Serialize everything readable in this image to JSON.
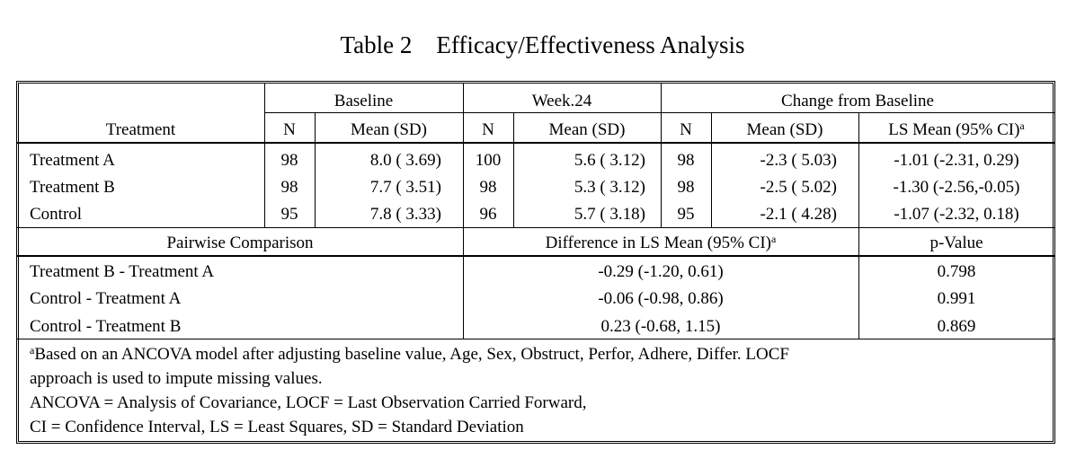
{
  "title": "Table 2    Efficacy/Effectiveness Analysis",
  "groups": {
    "baseline": "Baseline",
    "week24": "Week.24",
    "change": "Change from Baseline"
  },
  "columns": {
    "treatment": "Treatment",
    "n": "N",
    "mean_sd": "Mean (SD)",
    "ls_mean": "LS Mean (95% CI)",
    "ls_mean_sup": "a"
  },
  "rows": [
    {
      "treatment": "Treatment A",
      "base_n": "98",
      "base_mean": "8.0 ( 3.69)",
      "w24_n": "100",
      "w24_mean": "5.6 ( 3.12)",
      "chg_n": "98",
      "chg_mean": "-2.3 ( 5.03)",
      "ls_mean": "-1.01 (-2.31, 0.29)"
    },
    {
      "treatment": "Treatment B",
      "base_n": "98",
      "base_mean": "7.7 ( 3.51)",
      "w24_n": "98",
      "w24_mean": "5.3 ( 3.12)",
      "chg_n": "98",
      "chg_mean": "-2.5 ( 5.02)",
      "ls_mean": "-1.30 (-2.56,-0.05)"
    },
    {
      "treatment": "Control",
      "base_n": "95",
      "base_mean": "7.8 ( 3.33)",
      "w24_n": "96",
      "w24_mean": "5.7 ( 3.18)",
      "chg_n": "95",
      "chg_mean": "-2.1 ( 4.28)",
      "ls_mean": "-1.07 (-2.32, 0.18)"
    }
  ],
  "pairwise": {
    "header": "Pairwise Comparison",
    "diff_header": "Difference in LS Mean (95% CI)",
    "diff_sup": "a",
    "p_header": "p-Value",
    "rows": [
      {
        "label": "Treatment B - Treatment A",
        "diff": "-0.29 (-1.20, 0.61)",
        "p": "0.798"
      },
      {
        "label": "Control - Treatment A",
        "diff": "-0.06 (-0.98, 0.86)",
        "p": "0.991"
      },
      {
        "label": "Control - Treatment B",
        "diff": "0.23 (-0.68, 1.15)",
        "p": "0.869"
      }
    ]
  },
  "footnotes": {
    "sup": "a",
    "line1": "Based on an ANCOVA model after adjusting baseline value, Age, Sex, Obstruct, Perfor, Adhere, Differ. LOCF",
    "line2": "approach is used to impute missing values.",
    "line3": "ANCOVA = Analysis of Covariance, LOCF = Last Observation Carried Forward,",
    "line4": "CI = Confidence Interval, LS = Least Squares, SD = Standard Deviation"
  }
}
